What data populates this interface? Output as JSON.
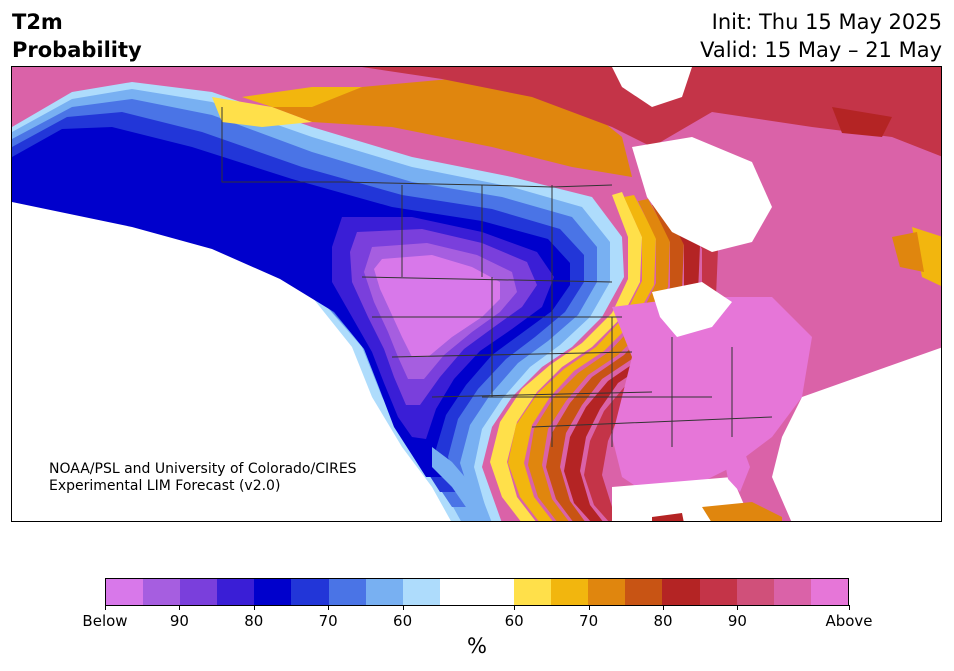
{
  "header": {
    "title_line1": "T2m",
    "title_line2": "Probability",
    "init": "Init: Thu 15 May 2025",
    "valid": "Valid: 15 May – 21 May"
  },
  "credit": {
    "line1": "NOAA/PSL and University of Colorado/CIRES",
    "line2": "Experimental LIM Forecast (v2.0)"
  },
  "legend": {
    "unit": "%",
    "colors": [
      "#d878ea",
      "#a65ee0",
      "#7a3fdc",
      "#3a1ed6",
      "#0000cc",
      "#2236d8",
      "#4a74e6",
      "#78b0f2",
      "#aedcfc",
      "#ffffff",
      "#ffffff",
      "#ffe04a",
      "#f2b60e",
      "#e0860e",
      "#c85414",
      "#b42424",
      "#c43448",
      "#d0507a",
      "#da62a8",
      "#e676d8"
    ],
    "labels": [
      "Below",
      "90",
      "80",
      "70",
      "60",
      "60",
      "70",
      "80",
      "90",
      "Above"
    ]
  },
  "map": {
    "colors": {
      "above_magenta": "#e676d8",
      "pink": "#da62a8",
      "rose": "#d0507a",
      "crimson": "#c43448",
      "darkred": "#b42424",
      "orange": "#c85414",
      "amber": "#e0860e",
      "gold": "#f2b60e",
      "yellow": "#ffe04a",
      "below_violet": "#d878ea",
      "purple": "#a65ee0",
      "indigo": "#7a3fdc",
      "deepblue": "#0000cc",
      "blue": "#2236d8",
      "midblue": "#4a74e6",
      "skyblue": "#78b0f2",
      "paleblue": "#aedcfc"
    }
  }
}
